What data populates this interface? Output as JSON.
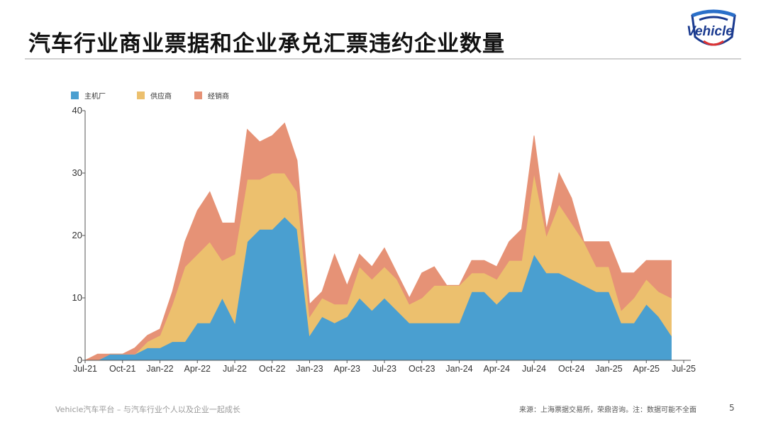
{
  "header": {
    "title": "汽车行业商业票据和企业承兑汇票违约企业数量",
    "logo_text": "Vehicle"
  },
  "footer": {
    "tagline": "Vehicle汽车平台 – 与汽车行业个人以及企业一起成长",
    "source": "来源：上海票据交易所，荣鼎咨询。注：数据可能不全面",
    "page_number": "5"
  },
  "chart_data": {
    "type": "area",
    "stacked": true,
    "title": "",
    "xlabel": "",
    "ylabel": "",
    "ylim": [
      0,
      40
    ],
    "yticks": [
      0,
      10,
      20,
      30,
      40
    ],
    "grid": false,
    "legend_position": "top-left",
    "x_tick_labels": [
      "Jul-21",
      "Oct-21",
      "Jan-22",
      "Apr-22",
      "Jul-22",
      "Oct-22",
      "Jan-23",
      "Apr-23",
      "Jul-23",
      "Oct-23",
      "Jan-24",
      "Apr-24",
      "Jul-24",
      "Oct-24",
      "Jan-25",
      "Apr-25",
      "Jul-25"
    ],
    "x_start": "2021-07",
    "months": [
      "2021-07",
      "2021-08",
      "2021-09",
      "2021-10",
      "2021-11",
      "2021-12",
      "2022-01",
      "2022-02",
      "2022-03",
      "2022-04",
      "2022-05",
      "2022-06",
      "2022-07",
      "2022-08",
      "2022-09",
      "2022-10",
      "2022-11",
      "2022-12",
      "2023-01",
      "2023-02",
      "2023-03",
      "2023-04",
      "2023-05",
      "2023-06",
      "2023-07",
      "2023-08",
      "2023-09",
      "2023-10",
      "2023-11",
      "2023-12",
      "2024-01",
      "2024-02",
      "2024-03",
      "2024-04",
      "2024-05",
      "2024-06",
      "2024-07",
      "2024-08",
      "2024-09",
      "2024-10",
      "2024-11",
      "2024-12",
      "2025-01",
      "2025-02",
      "2025-03",
      "2025-04",
      "2025-05",
      "2025-06"
    ],
    "series": [
      {
        "name": "主机厂",
        "color": "#4a9fd0",
        "values": [
          0,
          0,
          1,
          1,
          1,
          2,
          2,
          3,
          3,
          6,
          6,
          10,
          6,
          19,
          21,
          21,
          23,
          21,
          4,
          7,
          6,
          7,
          10,
          8,
          10,
          8,
          6,
          6,
          6,
          6,
          6,
          11,
          11,
          9,
          11,
          11,
          17,
          14,
          14,
          13,
          12,
          11,
          11,
          6,
          6,
          9,
          7,
          4
        ]
      },
      {
        "name": "供应商",
        "color": "#ecc06e",
        "values": [
          0,
          0,
          0,
          0,
          0,
          1,
          2,
          6,
          12,
          11,
          13,
          6,
          11,
          10,
          8,
          9,
          7,
          6,
          3,
          3,
          3,
          2,
          5,
          5,
          5,
          5,
          3,
          4,
          6,
          6,
          6,
          3,
          3,
          4,
          5,
          5,
          13,
          6,
          11,
          9,
          7,
          4,
          4,
          2,
          4,
          4,
          4,
          6
        ]
      },
      {
        "name": "经销商",
        "color": "#e69276",
        "values": [
          0,
          1,
          0,
          0,
          1,
          1,
          1,
          2,
          4,
          7,
          8,
          6,
          5,
          8,
          6,
          6,
          8,
          5,
          2,
          1,
          8,
          3,
          2,
          2,
          3,
          1,
          1,
          4,
          3,
          0,
          0,
          2,
          2,
          2,
          3,
          5,
          6,
          1,
          5,
          4,
          0,
          4,
          4,
          6,
          4,
          3,
          5,
          6
        ]
      }
    ]
  }
}
